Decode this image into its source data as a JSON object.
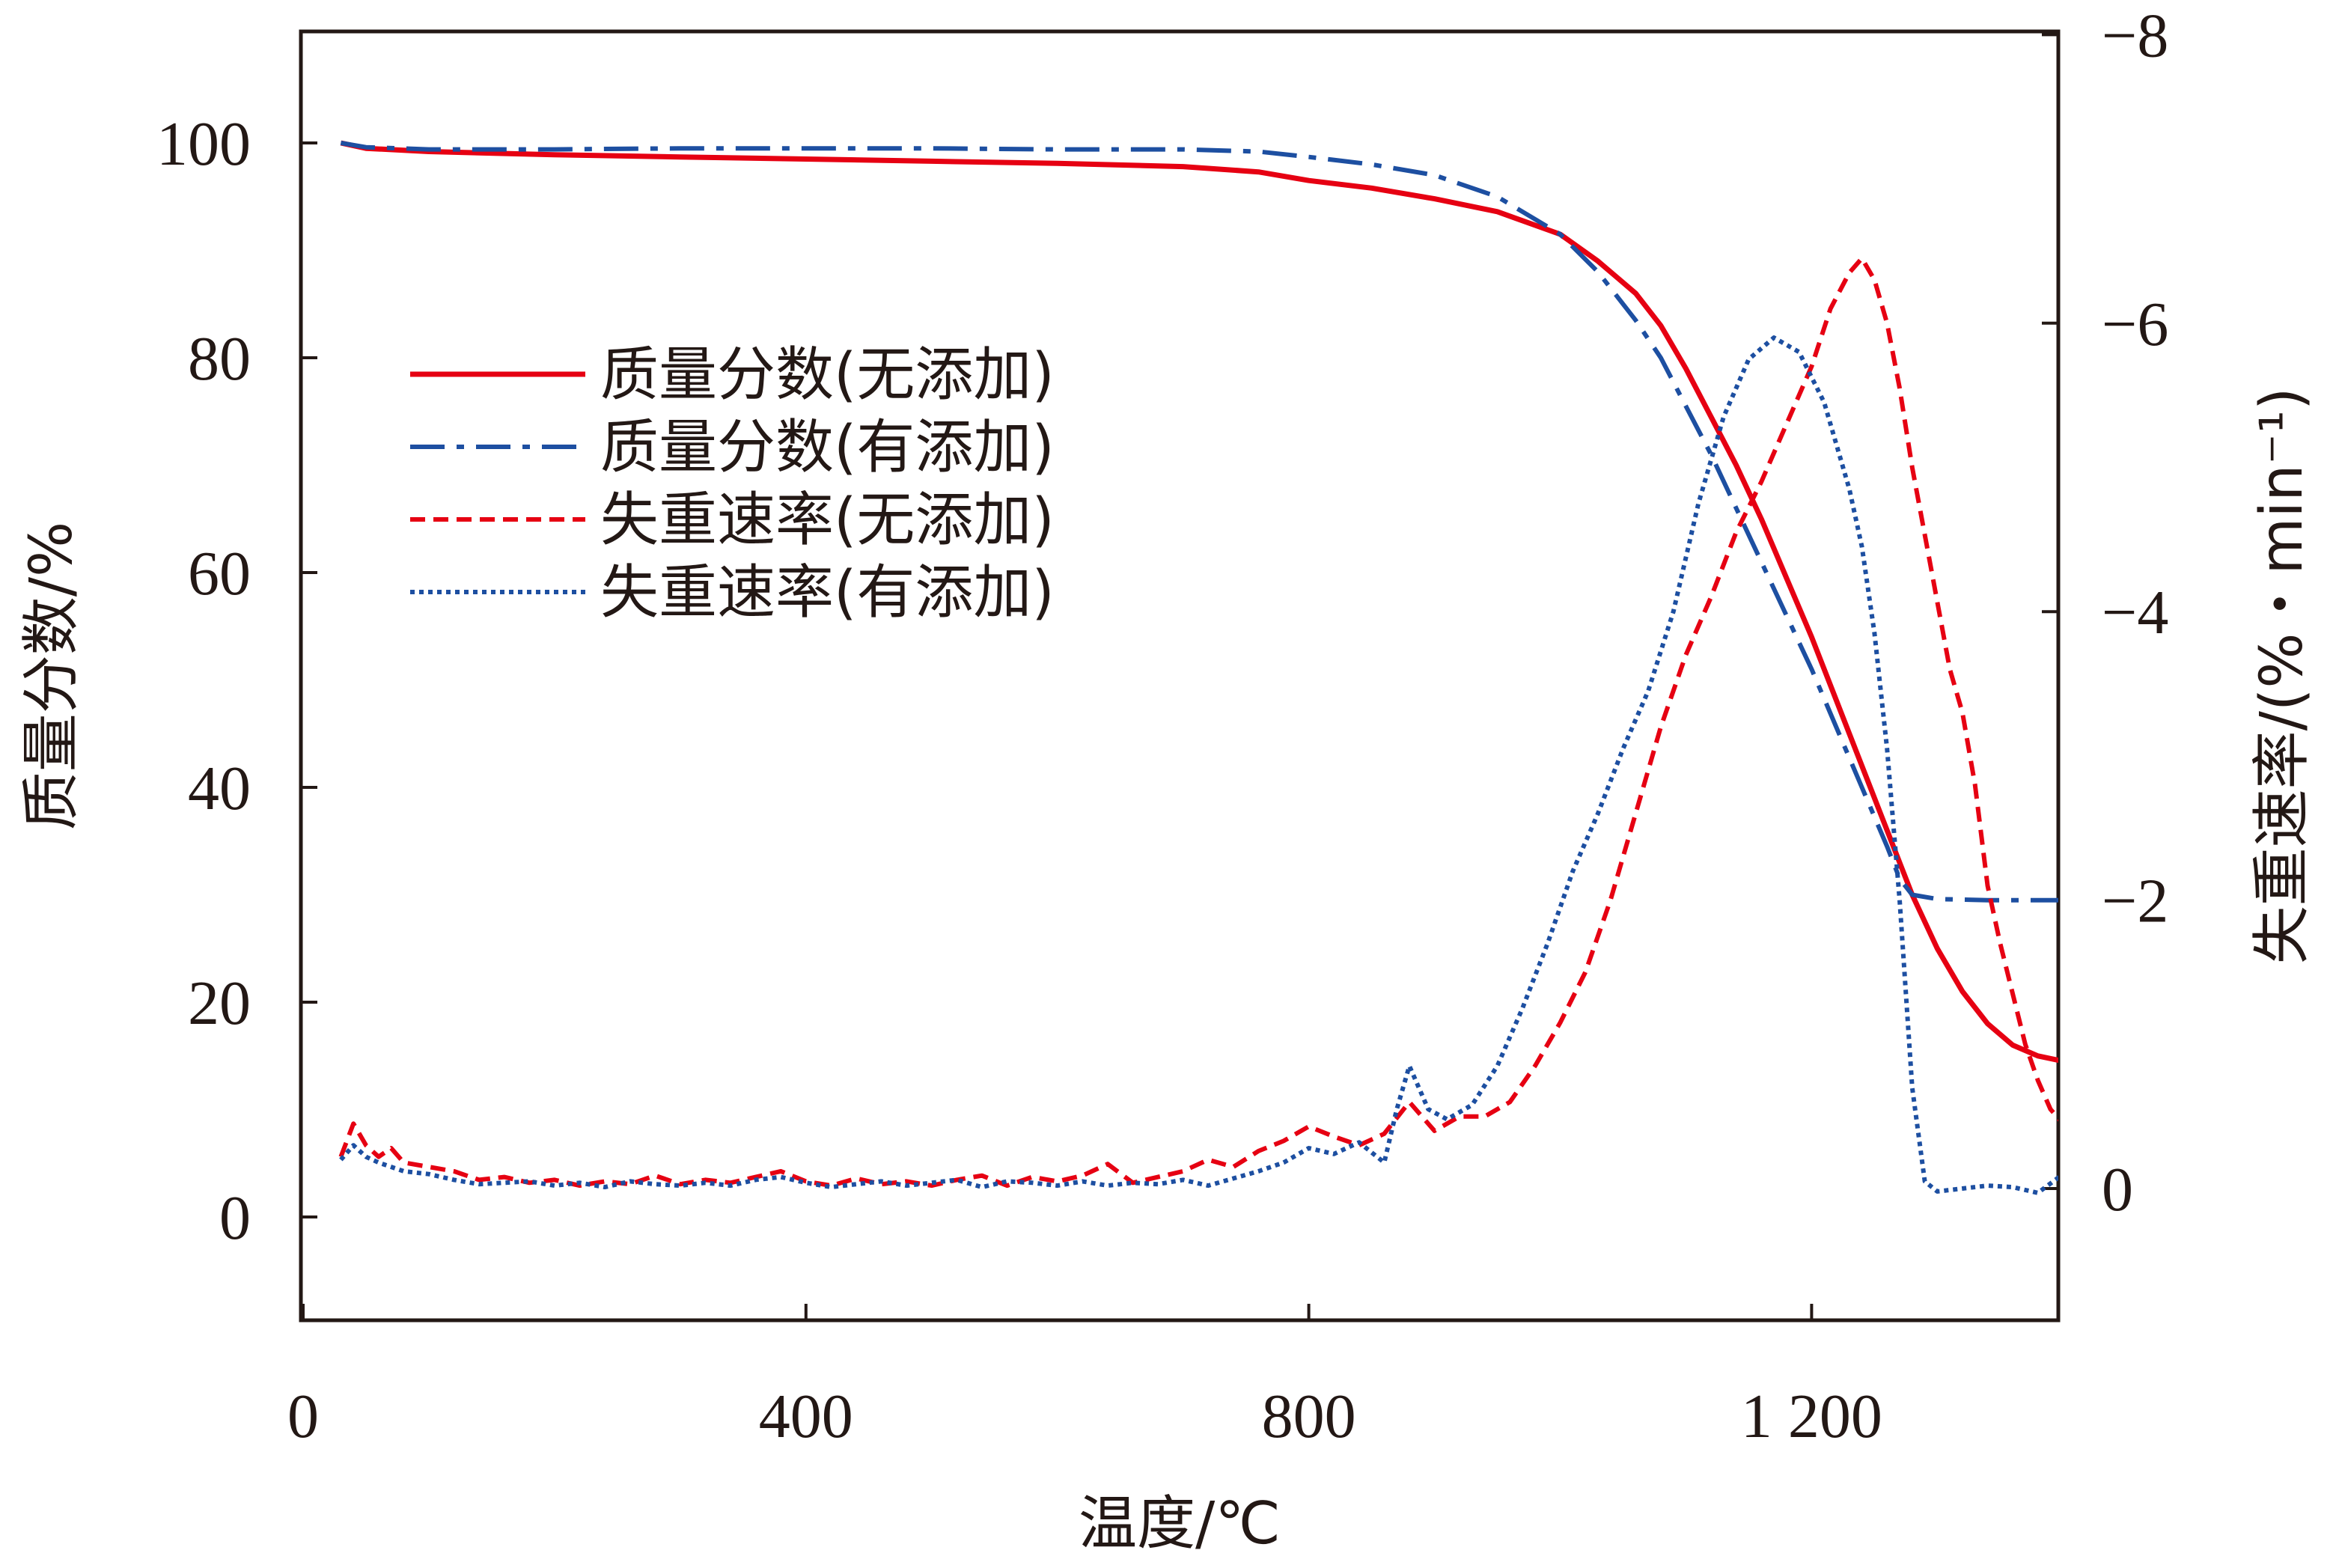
{
  "chart_data": {
    "type": "line",
    "xlabel": "温度/℃",
    "ylabel_left": "质量分数/%",
    "ylabel_right": "失重速率/(%・min⁻¹)",
    "xlim": [
      0,
      1400
    ],
    "ylim_left": [
      -10,
      110
    ],
    "ylim_right_reversed": [
      1.25,
      -8
    ],
    "x_ticks": [
      {
        "value": 0,
        "label": "0"
      },
      {
        "value": 400,
        "label": "400"
      },
      {
        "value": 800,
        "label": "800"
      },
      {
        "value": 1200,
        "label": "1 200"
      }
    ],
    "y_ticks_left": [
      {
        "value": 0,
        "label": "0"
      },
      {
        "value": 20,
        "label": "20"
      },
      {
        "value": 40,
        "label": "40"
      },
      {
        "value": 60,
        "label": "60"
      },
      {
        "value": 80,
        "label": "80"
      },
      {
        "value": 100,
        "label": "100"
      }
    ],
    "y_ticks_right": [
      {
        "value": 0,
        "label": "0"
      },
      {
        "value": -2,
        "label": "−2"
      },
      {
        "value": -4,
        "label": "−4"
      },
      {
        "value": -6,
        "label": "−6"
      },
      {
        "value": -8,
        "label": "−8"
      }
    ],
    "grid": false,
    "legend_position": "upper-left",
    "series": [
      {
        "name": "质量分数(无添加)",
        "axis": "left",
        "color": "#e60012",
        "style": "solid",
        "points": [
          [
            30,
            100
          ],
          [
            50,
            99.5
          ],
          [
            100,
            99.2
          ],
          [
            200,
            98.9
          ],
          [
            300,
            98.7
          ],
          [
            400,
            98.5
          ],
          [
            500,
            98.3
          ],
          [
            600,
            98.1
          ],
          [
            700,
            97.8
          ],
          [
            760,
            97.3
          ],
          [
            800,
            96.5
          ],
          [
            850,
            95.8
          ],
          [
            900,
            94.8
          ],
          [
            950,
            93.6
          ],
          [
            1000,
            91.5
          ],
          [
            1030,
            89
          ],
          [
            1060,
            86
          ],
          [
            1080,
            83
          ],
          [
            1100,
            79
          ],
          [
            1120,
            74.5
          ],
          [
            1140,
            70
          ],
          [
            1160,
            65
          ],
          [
            1180,
            59.5
          ],
          [
            1200,
            54
          ],
          [
            1220,
            48
          ],
          [
            1240,
            42
          ],
          [
            1260,
            36
          ],
          [
            1280,
            30
          ],
          [
            1300,
            25
          ],
          [
            1320,
            21
          ],
          [
            1340,
            18
          ],
          [
            1360,
            16
          ],
          [
            1380,
            15
          ],
          [
            1400,
            14.5
          ]
        ]
      },
      {
        "name": "质量分数(有添加)",
        "axis": "left",
        "color": "#1d4fa1",
        "style": "dashdot",
        "points": [
          [
            30,
            100
          ],
          [
            50,
            99.6
          ],
          [
            100,
            99.4
          ],
          [
            200,
            99.4
          ],
          [
            300,
            99.5
          ],
          [
            400,
            99.5
          ],
          [
            500,
            99.5
          ],
          [
            600,
            99.4
          ],
          [
            700,
            99.4
          ],
          [
            760,
            99.2
          ],
          [
            800,
            98.7
          ],
          [
            850,
            98
          ],
          [
            900,
            97
          ],
          [
            950,
            95
          ],
          [
            1000,
            91.5
          ],
          [
            1030,
            88
          ],
          [
            1060,
            83.5
          ],
          [
            1080,
            80
          ],
          [
            1100,
            75.5
          ],
          [
            1120,
            71
          ],
          [
            1140,
            66
          ],
          [
            1160,
            61
          ],
          [
            1180,
            56
          ],
          [
            1200,
            51
          ],
          [
            1220,
            45.5
          ],
          [
            1240,
            40
          ],
          [
            1260,
            34.5
          ],
          [
            1270,
            31.5
          ],
          [
            1280,
            30
          ],
          [
            1300,
            29.6
          ],
          [
            1340,
            29.5
          ],
          [
            1400,
            29.5
          ]
        ]
      },
      {
        "name": "失重速率(无添加)",
        "axis": "right",
        "color": "#e60012",
        "style": "dashed",
        "points": [
          [
            30,
            -0.22
          ],
          [
            40,
            -0.45
          ],
          [
            50,
            -0.3
          ],
          [
            60,
            -0.22
          ],
          [
            70,
            -0.28
          ],
          [
            80,
            -0.18
          ],
          [
            100,
            -0.15
          ],
          [
            120,
            -0.12
          ],
          [
            140,
            -0.06
          ],
          [
            160,
            -0.08
          ],
          [
            180,
            -0.04
          ],
          [
            200,
            -0.06
          ],
          [
            220,
            -0.02
          ],
          [
            240,
            -0.05
          ],
          [
            260,
            -0.03
          ],
          [
            280,
            -0.09
          ],
          [
            300,
            -0.03
          ],
          [
            320,
            -0.06
          ],
          [
            340,
            -0.04
          ],
          [
            360,
            -0.08
          ],
          [
            380,
            -0.12
          ],
          [
            400,
            -0.05
          ],
          [
            420,
            -0.02
          ],
          [
            440,
            -0.07
          ],
          [
            460,
            -0.03
          ],
          [
            480,
            -0.05
          ],
          [
            500,
            -0.02
          ],
          [
            520,
            -0.06
          ],
          [
            540,
            -0.09
          ],
          [
            560,
            -0.02
          ],
          [
            580,
            -0.08
          ],
          [
            600,
            -0.05
          ],
          [
            620,
            -0.09
          ],
          [
            640,
            -0.17
          ],
          [
            660,
            -0.04
          ],
          [
            680,
            -0.08
          ],
          [
            700,
            -0.12
          ],
          [
            720,
            -0.2
          ],
          [
            740,
            -0.15
          ],
          [
            760,
            -0.26
          ],
          [
            780,
            -0.33
          ],
          [
            800,
            -0.43
          ],
          [
            820,
            -0.36
          ],
          [
            840,
            -0.3
          ],
          [
            860,
            -0.38
          ],
          [
            880,
            -0.6
          ],
          [
            900,
            -0.4
          ],
          [
            920,
            -0.5
          ],
          [
            940,
            -0.5
          ],
          [
            960,
            -0.6
          ],
          [
            980,
            -0.85
          ],
          [
            1000,
            -1.15
          ],
          [
            1020,
            -1.5
          ],
          [
            1040,
            -2.0
          ],
          [
            1060,
            -2.6
          ],
          [
            1080,
            -3.2
          ],
          [
            1100,
            -3.7
          ],
          [
            1120,
            -4.1
          ],
          [
            1140,
            -4.55
          ],
          [
            1160,
            -4.9
          ],
          [
            1180,
            -5.3
          ],
          [
            1200,
            -5.7
          ],
          [
            1215,
            -6.1
          ],
          [
            1230,
            -6.35
          ],
          [
            1240,
            -6.45
          ],
          [
            1250,
            -6.3
          ],
          [
            1260,
            -6.0
          ],
          [
            1270,
            -5.55
          ],
          [
            1280,
            -5.0
          ],
          [
            1295,
            -4.3
          ],
          [
            1310,
            -3.6
          ],
          [
            1320,
            -3.3
          ],
          [
            1330,
            -2.8
          ],
          [
            1340,
            -2.1
          ],
          [
            1350,
            -1.7
          ],
          [
            1360,
            -1.35
          ],
          [
            1370,
            -1.0
          ],
          [
            1380,
            -0.75
          ],
          [
            1390,
            -0.55
          ],
          [
            1400,
            -0.45
          ]
        ]
      },
      {
        "name": "失重速率(有添加)",
        "axis": "right",
        "color": "#1d4fa1",
        "style": "dotted",
        "points": [
          [
            30,
            -0.2
          ],
          [
            40,
            -0.3
          ],
          [
            50,
            -0.22
          ],
          [
            60,
            -0.18
          ],
          [
            80,
            -0.12
          ],
          [
            100,
            -0.1
          ],
          [
            120,
            -0.06
          ],
          [
            140,
            -0.03
          ],
          [
            160,
            -0.04
          ],
          [
            180,
            -0.05
          ],
          [
            200,
            -0.02
          ],
          [
            220,
            -0.04
          ],
          [
            240,
            -0.01
          ],
          [
            260,
            -0.05
          ],
          [
            280,
            -0.03
          ],
          [
            300,
            -0.02
          ],
          [
            320,
            -0.04
          ],
          [
            340,
            -0.02
          ],
          [
            360,
            -0.06
          ],
          [
            380,
            -0.08
          ],
          [
            400,
            -0.04
          ],
          [
            420,
            -0.01
          ],
          [
            440,
            -0.03
          ],
          [
            460,
            -0.05
          ],
          [
            480,
            -0.02
          ],
          [
            500,
            -0.04
          ],
          [
            520,
            -0.06
          ],
          [
            540,
            -0.01
          ],
          [
            560,
            -0.05
          ],
          [
            580,
            -0.04
          ],
          [
            600,
            -0.02
          ],
          [
            620,
            -0.05
          ],
          [
            640,
            -0.02
          ],
          [
            660,
            -0.04
          ],
          [
            680,
            -0.03
          ],
          [
            700,
            -0.06
          ],
          [
            720,
            -0.02
          ],
          [
            740,
            -0.07
          ],
          [
            760,
            -0.12
          ],
          [
            780,
            -0.18
          ],
          [
            800,
            -0.28
          ],
          [
            820,
            -0.24
          ],
          [
            840,
            -0.32
          ],
          [
            860,
            -0.18
          ],
          [
            870,
            -0.55
          ],
          [
            880,
            -0.85
          ],
          [
            895,
            -0.55
          ],
          [
            910,
            -0.48
          ],
          [
            930,
            -0.58
          ],
          [
            950,
            -0.85
          ],
          [
            970,
            -1.25
          ],
          [
            990,
            -1.7
          ],
          [
            1010,
            -2.2
          ],
          [
            1030,
            -2.6
          ],
          [
            1050,
            -3.05
          ],
          [
            1070,
            -3.45
          ],
          [
            1090,
            -4.0
          ],
          [
            1110,
            -4.75
          ],
          [
            1130,
            -5.35
          ],
          [
            1150,
            -5.75
          ],
          [
            1170,
            -5.9
          ],
          [
            1190,
            -5.8
          ],
          [
            1210,
            -5.45
          ],
          [
            1230,
            -4.85
          ],
          [
            1240,
            -4.45
          ],
          [
            1250,
            -3.85
          ],
          [
            1260,
            -3.05
          ],
          [
            1270,
            -2.0
          ],
          [
            1280,
            -0.7
          ],
          [
            1290,
            -0.05
          ],
          [
            1300,
            0.02
          ],
          [
            1320,
            0.0
          ],
          [
            1340,
            -0.02
          ],
          [
            1360,
            -0.01
          ],
          [
            1380,
            0.03
          ],
          [
            1400,
            -0.1
          ]
        ]
      }
    ]
  }
}
